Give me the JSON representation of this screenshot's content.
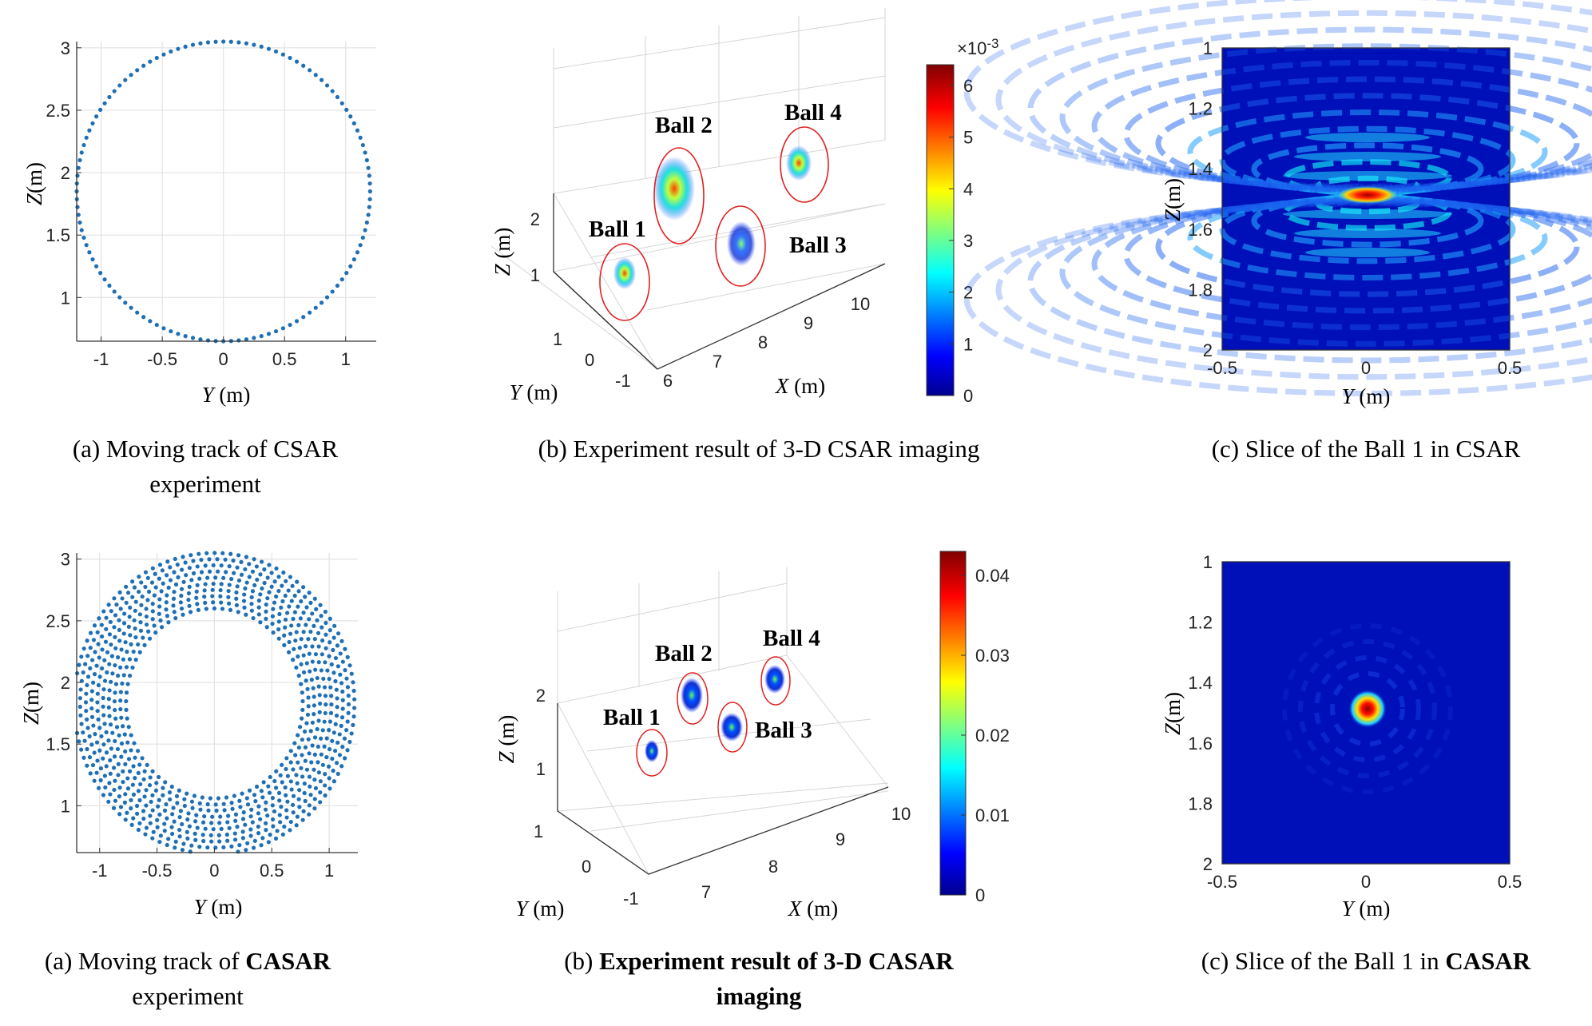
{
  "captions": {
    "r1a": "(a) Moving track of CSAR experiment",
    "r1a_l1": "(a) Moving track of CSAR",
    "r1a_l2": "experiment",
    "r1b": "(b) Experiment result of 3-D CSAR imaging",
    "r1c": "(c) Slice of the Ball 1 in CSAR",
    "r2a_pre": "(a) Moving track of ",
    "r2a_bold": "CASAR",
    "r2a_l2": "experiment",
    "r2b_pre": "(b) ",
    "r2b_bold_l1": "Experiment result of 3-D CASAR",
    "r2b_bold_l2": "imaging",
    "r2c_pre": "(c) Slice of the Ball 1 in ",
    "r2c_bold": "CASAR"
  },
  "colors": {
    "track": "#1f6fb5",
    "ellipse": "#e02020",
    "jet": [
      "#00008f",
      "#0000ff",
      "#00ffff",
      "#ffff00",
      "#ff0000",
      "#800000"
    ]
  },
  "chart_data": [
    {
      "id": "r1a",
      "type": "scatter",
      "description_ref": "CSAR moving track",
      "xlabel_var": "Y",
      "xlabel_unit": "(m)",
      "ylabel_var": "Z",
      "ylabel_unit": "(m)",
      "xlim": [
        -1.2,
        1.25
      ],
      "ylim": [
        0.65,
        3.05
      ],
      "xticks": [
        -1,
        -0.5,
        0,
        0.5,
        1
      ],
      "xticklabels": [
        "-1",
        "-0.5",
        "0",
        "0.5",
        "1"
      ],
      "yticks": [
        1,
        1.5,
        2,
        2.5,
        3
      ],
      "yticklabels": [
        "1",
        "1.5",
        "2",
        "2.5",
        "3"
      ],
      "grid": true,
      "track": {
        "center": [
          0,
          1.85
        ],
        "radii": [
          1.2
        ],
        "points_per_ring": 120
      }
    },
    {
      "id": "r2a",
      "type": "scatter",
      "description_ref": "CASAR moving track",
      "xlabel_var": "Y",
      "xlabel_unit": "(m)",
      "ylabel_var": "Z",
      "ylabel_unit": "(m)",
      "xlim": [
        -1.2,
        1.25
      ],
      "ylim": [
        0.62,
        3.05
      ],
      "xticks": [
        -1,
        -0.5,
        0,
        0.5,
        1
      ],
      "xticklabels": [
        "-1",
        "-0.5",
        "0",
        "0.5",
        "1"
      ],
      "yticks": [
        1,
        1.5,
        2,
        2.5,
        3
      ],
      "yticklabels": [
        "1",
        "1.5",
        "2",
        "2.5",
        "3"
      ],
      "grid": true,
      "track": {
        "center": [
          0,
          1.83
        ],
        "radii": [
          0.77,
          0.82,
          0.87,
          0.92,
          0.97,
          1.02,
          1.07,
          1.12,
          1.17,
          1.22
        ],
        "points_per_ring": 110
      }
    },
    {
      "id": "r1b",
      "type": "scatter3d",
      "xlabel_var": "X",
      "xlabel_unit": "(m)",
      "ylabel_var": "Y",
      "ylabel_unit": "(m)",
      "zlabel_var": "Z",
      "zlabel_unit": "(m)",
      "xticklabels": [
        "6",
        "7",
        "8",
        "9",
        "10"
      ],
      "yticklabels": [
        "-1",
        "0",
        "1"
      ],
      "zticklabels": [
        "1",
        "2"
      ],
      "balls": [
        "Ball 1",
        "Ball 2",
        "Ball 3",
        "Ball 4"
      ],
      "colorbar": {
        "exponent": "×10",
        "exponent_power": "-3",
        "ticks": [
          "0",
          "1",
          "2",
          "3",
          "4",
          "5",
          "6"
        ],
        "max": 6.4
      }
    },
    {
      "id": "r2b",
      "type": "scatter3d",
      "xlabel_var": "X",
      "xlabel_unit": "(m)",
      "ylabel_var": "Y",
      "ylabel_unit": "(m)",
      "zlabel_var": "Z",
      "zlabel_unit": "(m)",
      "xticklabels": [
        "7",
        "8",
        "9",
        "10"
      ],
      "yticklabels": [
        "-1",
        "0",
        "1"
      ],
      "zticklabels": [
        "1",
        "2"
      ],
      "balls": [
        "Ball 1",
        "Ball 2",
        "Ball 3",
        "Ball 4"
      ],
      "colorbar": {
        "ticks": [
          "0",
          "0.01",
          "0.02",
          "0.03",
          "0.04"
        ],
        "max": 0.043
      }
    },
    {
      "id": "r1c",
      "type": "heatmap",
      "xlabel_var": "Y",
      "xlabel_unit": "(m)",
      "ylabel_var": "Z",
      "ylabel_unit": "(m)",
      "xlim": [
        -0.5,
        0.5
      ],
      "ylim": [
        1,
        2
      ],
      "y_reversed": true,
      "xticklabels": [
        "-0.5",
        "0",
        "0.5"
      ],
      "yticklabels": [
        "1",
        "1.2",
        "1.4",
        "1.6",
        "1.8",
        "2"
      ],
      "peak": [
        0,
        1.5
      ]
    },
    {
      "id": "r2c",
      "type": "heatmap",
      "xlabel_var": "Y",
      "xlabel_unit": "(m)",
      "ylabel_var": "Z",
      "ylabel_unit": "(m)",
      "xlim": [
        -0.5,
        0.5
      ],
      "ylim": [
        1,
        2
      ],
      "y_reversed": true,
      "xticklabels": [
        "-0.5",
        "0",
        "0.5"
      ],
      "yticklabels": [
        "1",
        "1.2",
        "1.4",
        "1.6",
        "1.8",
        "2"
      ],
      "peak": [
        0,
        1.5
      ]
    }
  ]
}
